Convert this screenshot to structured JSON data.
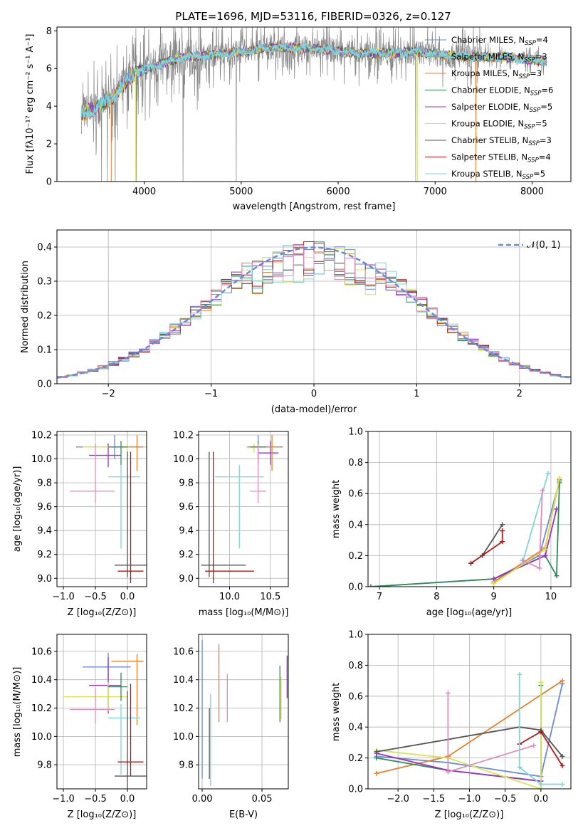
{
  "title": "PLATE=1696, MJD=53116, FIBERID=0326, z=0.127",
  "colors": [
    "#6a8ad6",
    "#8a9fd6",
    "#e3802a",
    "#2e8b57",
    "#9b30c0",
    "#d9e34f",
    "#555555",
    "#b01818",
    "#7fd6d6",
    "#e08ac0"
  ],
  "spectrum_panel": {
    "xlabel": "wavelength [Angstrom, rest frame]",
    "ylabel": "Flux [fλ10⁻¹⁷ erg cm⁻² s⁻¹ A⁻¹]",
    "xlim": [
      3100,
      8400
    ],
    "ylim": [
      0,
      8.2
    ],
    "xticks": [
      "4000",
      "5000",
      "6000",
      "7000",
      "8000"
    ],
    "yticks": [
      "0",
      "2",
      "4",
      "6",
      "8"
    ],
    "legend_position": "upper-right",
    "legend": [
      {
        "label": "Chabrier MILES, N",
        "sub": "SSP",
        "suffix": "=4",
        "color": "#6a8ad6"
      },
      {
        "label": "Salpeter MILES, N",
        "sub": "SSP",
        "suffix": "=3",
        "color": "#8a9fd6"
      },
      {
        "label": "Kroupa MILES, N",
        "sub": "SSP",
        "suffix": "=3",
        "color": "#e3802a"
      },
      {
        "label": "Chabrier ELODIE, N",
        "sub": "SSP",
        "suffix": "=6",
        "color": "#2e8b57"
      },
      {
        "label": "Salpeter ELODIE, N",
        "sub": "SSP",
        "suffix": "=5",
        "color": "#9b30c0"
      },
      {
        "label": "Kroupa ELODIE, N",
        "sub": "SSP",
        "suffix": "=5",
        "color": "#d9e34f"
      },
      {
        "label": "Chabrier STELIB, N",
        "sub": "SSP",
        "suffix": "=3",
        "color": "#555555"
      },
      {
        "label": "Salpeter STELIB, N",
        "sub": "SSP",
        "suffix": "=4",
        "color": "#b01818"
      },
      {
        "label": "Kroupa STELIB, N",
        "sub": "SSP",
        "suffix": "=5",
        "color": "#7fd6d6"
      }
    ]
  },
  "chart_data": [
    {
      "type": "line",
      "name": "spectrum",
      "x_start": 3350,
      "x_end": 8150,
      "anchors_x": [
        3350,
        3500,
        3700,
        3900,
        4000,
        4200,
        4400,
        4700,
        5000,
        5300,
        5600,
        5900,
        6200,
        6500,
        6800,
        7100,
        7400,
        7700,
        8150
      ],
      "anchors_y": [
        3.6,
        3.9,
        4.6,
        5.8,
        5.9,
        6.3,
        6.6,
        6.7,
        6.9,
        7.1,
        7.1,
        7.0,
        6.8,
        6.8,
        6.9,
        6.7,
        6.6,
        6.6,
        6.4
      ],
      "noise_drops": [
        [
          3560,
          0
        ],
        [
          3620,
          0
        ],
        [
          3700,
          0
        ],
        [
          3920,
          0
        ],
        [
          4400,
          0
        ],
        [
          4950,
          0
        ],
        [
          6800,
          0
        ],
        [
          7420,
          0
        ]
      ],
      "xlim": [
        3100,
        8400
      ],
      "ylim": [
        0,
        8.2
      ]
    },
    {
      "type": "bar",
      "name": "residual-histogram",
      "xlabel": "(data-model)/error",
      "ylabel": "Normed distribution",
      "xlim": [
        -2.5,
        2.5
      ],
      "ylim": [
        0,
        0.45
      ],
      "xticks": [
        "−2",
        "−1",
        "0",
        "1",
        "2"
      ],
      "yticks": [
        "0.0",
        "0.1",
        "0.2",
        "0.3",
        "0.4"
      ],
      "bin_width": 0.1,
      "legend": "𝒩(0, 1)",
      "legend_position": "upper-right"
    },
    {
      "type": "scatter",
      "name": "age-vs-Z",
      "xlabel": "Z [log₁₀(Z/Z⊙)]",
      "ylabel": "age  [log₁₀(age/yr)]",
      "xlim": [
        -1.1,
        0.3
      ],
      "ylim": [
        8.93,
        10.23
      ],
      "xticks": [
        "−1.0",
        "−0.5",
        "0.0"
      ],
      "yticks": [
        "9.0",
        "9.2",
        "9.4",
        "9.6",
        "9.8",
        "10.0",
        "10.2"
      ],
      "points": [
        {
          "x": -0.2,
          "y": 10.1,
          "xerr": [
            0.6,
            0.4
          ],
          "yerr": [
            0.1,
            0.1
          ],
          "c": 0
        },
        {
          "x": -0.3,
          "y": 10.03,
          "xerr": [
            0.3,
            0.2
          ],
          "yerr": [
            0.1,
            0.1
          ],
          "c": 4
        },
        {
          "x": 0.0,
          "y": 10.1,
          "xerr": [
            0.7,
            0.3
          ],
          "yerr": [
            0.05,
            0.03
          ],
          "c": 5
        },
        {
          "x": 0.15,
          "y": 10.1,
          "xerr": [
            0.4,
            0.1
          ],
          "yerr": [
            0.2,
            0.1
          ],
          "c": 2
        },
        {
          "x": -0.1,
          "y": 10.1,
          "xerr": [
            0.2,
            0.1
          ],
          "yerr": [
            0.15,
            0.05
          ],
          "c": 3
        },
        {
          "x": -0.5,
          "y": 9.73,
          "xerr": [
            0.4,
            0.3
          ],
          "yerr": [
            0.1,
            0.4
          ],
          "c": 9
        },
        {
          "x": -0.1,
          "y": 9.85,
          "xerr": [
            0.2,
            0.3
          ],
          "yerr": [
            0.6,
            0.1
          ],
          "c": 8
        },
        {
          "x": 0.0,
          "y": 9.11,
          "xerr": [
            0.2,
            0.3
          ],
          "yerr": [
            0.1,
            0.95
          ],
          "c": 6
        },
        {
          "x": 0.05,
          "y": 9.06,
          "xerr": [
            0.2,
            0.2
          ],
          "yerr": [
            0.1,
            1.0
          ],
          "c": 7
        }
      ]
    },
    {
      "type": "scatter",
      "name": "age-vs-mass",
      "xlabel": "mass [log₁₀(M/M⊙)]",
      "ylabel": "",
      "xlim": [
        9.62,
        10.72
      ],
      "ylim": [
        8.93,
        10.23
      ],
      "xticks": [
        "10.0",
        "10.5"
      ],
      "yticks": [
        "9.0",
        "9.2",
        "9.4",
        "9.6",
        "9.8",
        "10.0",
        "10.2"
      ],
      "points": [
        {
          "x": 10.35,
          "y": 10.1,
          "xerr": [
            0.1,
            0.3
          ],
          "yerr": [
            0.1,
            0.1
          ],
          "c": 0
        },
        {
          "x": 10.5,
          "y": 10.05,
          "xerr": [
            0.15,
            0.1
          ],
          "yerr": [
            0.1,
            0.1
          ],
          "c": 4
        },
        {
          "x": 10.3,
          "y": 10.1,
          "xerr": [
            0.1,
            0.2
          ],
          "yerr": [
            0.05,
            0.03
          ],
          "c": 5
        },
        {
          "x": 10.52,
          "y": 10.1,
          "xerr": [
            0.3,
            0.1
          ],
          "yerr": [
            0.2,
            0.1
          ],
          "c": 2
        },
        {
          "x": 10.35,
          "y": 10.1,
          "xerr": [
            0.1,
            0.1
          ],
          "yerr": [
            0.15,
            0.05
          ],
          "c": 3
        },
        {
          "x": 10.35,
          "y": 9.73,
          "xerr": [
            0.1,
            0.1
          ],
          "yerr": [
            0.1,
            0.4
          ],
          "c": 9
        },
        {
          "x": 10.12,
          "y": 9.85,
          "xerr": [
            0.3,
            0.3
          ],
          "yerr": [
            0.6,
            0.1
          ],
          "c": 8
        },
        {
          "x": 9.75,
          "y": 9.11,
          "xerr": [
            0.1,
            0.45
          ],
          "yerr": [
            0.1,
            0.95
          ],
          "c": 6
        },
        {
          "x": 9.8,
          "y": 9.06,
          "xerr": [
            0.1,
            0.5
          ],
          "yerr": [
            0.1,
            1.0
          ],
          "c": 7
        }
      ]
    },
    {
      "type": "line",
      "name": "mass-weight-vs-age",
      "xlabel": "age  [log₁₀(age/yr)]",
      "ylabel": "mass weight",
      "xlim": [
        6.8,
        10.35
      ],
      "ylim": [
        0,
        1.0
      ],
      "xticks": [
        "7",
        "8",
        "9",
        "10"
      ],
      "yticks": [
        "0.0",
        "0.2",
        "0.4",
        "0.6",
        "0.8",
        "1.0"
      ],
      "series": [
        {
          "c": 0,
          "x": [
            6.85,
            9.0,
            9.8,
            10.15
          ],
          "y": [
            0.0,
            0.05,
            0.2,
            0.68
          ]
        },
        {
          "c": 2,
          "x": [
            9.0,
            9.9,
            10.15
          ],
          "y": [
            0.03,
            0.25,
            0.69
          ]
        },
        {
          "c": 3,
          "x": [
            6.85,
            9.0,
            9.9,
            10.1,
            10.15
          ],
          "y": [
            0.0,
            0.05,
            0.2,
            0.07,
            0.67
          ]
        },
        {
          "c": 4,
          "x": [
            9.0,
            9.9,
            10.1
          ],
          "y": [
            0.05,
            0.2,
            0.5
          ]
        },
        {
          "c": 5,
          "x": [
            9.0,
            9.9,
            10.15
          ],
          "y": [
            0.02,
            0.24,
            0.7
          ]
        },
        {
          "c": 6,
          "x": [
            8.8,
            9.15
          ],
          "y": [
            0.2,
            0.4
          ]
        },
        {
          "c": 7,
          "x": [
            8.6,
            9.15,
            9.15
          ],
          "y": [
            0.15,
            0.29,
            0.36
          ]
        },
        {
          "c": 8,
          "x": [
            9.5,
            9.95
          ],
          "y": [
            0.15,
            0.73
          ]
        },
        {
          "c": 9,
          "x": [
            9.5,
            9.8,
            9.85
          ],
          "y": [
            0.17,
            0.12,
            0.62
          ]
        }
      ]
    },
    {
      "type": "scatter",
      "name": "mass-vs-Z",
      "xlabel": "Z [log₁₀(Z/Z⊙)]",
      "ylabel": "mass [log₁₀(M/M⊙)]",
      "xlim": [
        -1.1,
        0.3
      ],
      "ylim": [
        9.63,
        10.72
      ],
      "xticks": [
        "−1.0",
        "−0.5",
        "0.0"
      ],
      "yticks": [
        "9.8",
        "10.0",
        "10.2",
        "10.4",
        "10.6"
      ],
      "points": [
        {
          "x": -0.3,
          "y": 10.49,
          "xerr": [
            0.4,
            0.35
          ],
          "yerr": [
            0.1,
            0.1
          ],
          "c": 0
        },
        {
          "x": -0.3,
          "y": 10.36,
          "xerr": [
            0.3,
            0.2
          ],
          "yerr": [
            0.2,
            0.2
          ],
          "c": 4
        },
        {
          "x": -0.3,
          "y": 10.28,
          "xerr": [
            0.7,
            0.3
          ],
          "yerr": [
            0.1,
            0.1
          ],
          "c": 5
        },
        {
          "x": 0.15,
          "y": 10.53,
          "xerr": [
            0.4,
            0.1
          ],
          "yerr": [
            0.45,
            0.05
          ],
          "c": 2
        },
        {
          "x": -0.1,
          "y": 10.35,
          "xerr": [
            0.2,
            0.1
          ],
          "yerr": [
            0.1,
            0.1
          ],
          "c": 3
        },
        {
          "x": -0.5,
          "y": 10.19,
          "xerr": [
            0.4,
            0.3
          ],
          "yerr": [
            0.1,
            0.15
          ],
          "c": 9
        },
        {
          "x": -0.1,
          "y": 10.13,
          "xerr": [
            0.2,
            0.3
          ],
          "yerr": [
            0.4,
            0.1
          ],
          "c": 8
        },
        {
          "x": 0.0,
          "y": 9.72,
          "xerr": [
            0.2,
            0.3
          ],
          "yerr": [
            0.1,
            0.6
          ],
          "c": 6
        },
        {
          "x": 0.05,
          "y": 9.82,
          "xerr": [
            0.2,
            0.2
          ],
          "yerr": [
            0.1,
            0.55
          ],
          "c": 7
        }
      ]
    },
    {
      "type": "scatter",
      "name": "mass-vs-ebv",
      "xlabel": "E(B-V)",
      "ylabel": "",
      "xlim": [
        -0.003,
        0.072
      ],
      "ylim": [
        9.63,
        10.72
      ],
      "xticks": [
        "0.00",
        "0.05"
      ],
      "yticks": [
        "9.8",
        "10.0",
        "10.2",
        "10.4",
        "10.6"
      ],
      "points": [
        {
          "x": 0.0,
          "y": 10.3,
          "yerr": [
            0.6,
            0.38
          ],
          "c": 0
        },
        {
          "x": 0.007,
          "y": 10.2,
          "yerr": [
            0.55,
            0.1
          ],
          "c": 8
        },
        {
          "x": 0.006,
          "y": 10.0,
          "yerr": [
            0.3,
            0.2
          ],
          "c": 6
        },
        {
          "x": 0.014,
          "y": 10.35,
          "yerr": [
            0.25,
            0.3
          ],
          "c": 2
        },
        {
          "x": 0.021,
          "y": 10.27,
          "yerr": [
            0.17,
            0.17
          ],
          "c": 9
        },
        {
          "x": 0.065,
          "y": 10.3,
          "yerr": [
            0.2,
            0.2
          ],
          "c": 3
        },
        {
          "x": 0.066,
          "y": 10.27,
          "yerr": [
            0.15,
            0.15
          ],
          "c": 5
        },
        {
          "x": 0.071,
          "y": 10.42,
          "yerr": [
            0.15,
            0.15
          ],
          "c": 4
        }
      ]
    },
    {
      "type": "line",
      "name": "mass-weight-vs-Z",
      "xlabel": "Z [log₁₀(Z/Z⊙)]",
      "ylabel": "mass weight",
      "xlim": [
        -2.42,
        0.42
      ],
      "ylim": [
        0,
        1.0
      ],
      "xticks": [
        "−2.0",
        "−1.5",
        "−1.0",
        "−0.5",
        "0.0"
      ],
      "yticks": [
        "0.0",
        "0.2",
        "0.4",
        "0.6",
        "0.8",
        "1.0"
      ],
      "series": [
        {
          "c": 0,
          "x": [
            -2.3,
            -1.3,
            0.0,
            0.3
          ],
          "y": [
            0.21,
            0.17,
            0.08,
            0.68
          ]
        },
        {
          "c": 2,
          "x": [
            -2.3,
            -1.3,
            0.3
          ],
          "y": [
            0.1,
            0.21,
            0.7
          ]
        },
        {
          "c": 3,
          "x": [
            -2.3,
            -1.3,
            0.0,
            0.0
          ],
          "y": [
            0.2,
            0.12,
            0.05,
            0.67
          ]
        },
        {
          "c": 4,
          "x": [
            -2.3,
            -1.3,
            0.0
          ],
          "y": [
            0.23,
            0.12,
            0.05
          ]
        },
        {
          "c": 5,
          "x": [
            -2.3,
            -1.3,
            0.0,
            0.0
          ],
          "y": [
            0.25,
            0.2,
            0.0,
            0.69
          ]
        },
        {
          "c": 6,
          "x": [
            -2.3,
            -0.3,
            0.0,
            0.3
          ],
          "y": [
            0.24,
            0.4,
            0.38,
            0.21
          ]
        },
        {
          "c": 7,
          "x": [
            -0.3,
            0.0,
            0.3
          ],
          "y": [
            0.29,
            0.37,
            0.15
          ]
        },
        {
          "c": 8,
          "x": [
            -0.3,
            -0.3,
            0.0,
            0.3
          ],
          "y": [
            0.74,
            0.14,
            0.03,
            0.03
          ]
        },
        {
          "c": 9,
          "x": [
            -1.3,
            -1.3,
            -0.1
          ],
          "y": [
            0.62,
            0.11,
            0.28
          ]
        }
      ]
    }
  ]
}
